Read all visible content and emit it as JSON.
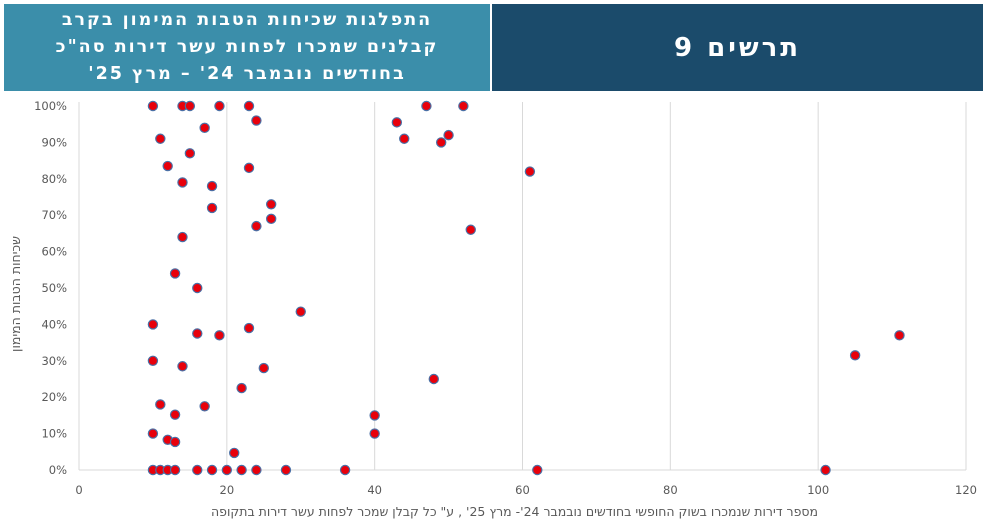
{
  "header": {
    "title_lines": [
      "התפלגות שכיחות הטבות המימון בקרב",
      "קבלנים שמכרו לפחות עשר דירות סה\"כ",
      "בחודשים נובמבר 24' – מרץ 25'"
    ],
    "label": "תרשים 9"
  },
  "colors": {
    "title_bg": "#3b8eaa",
    "label_bg": "#1b4b6b",
    "marker_fill": "#e8000b",
    "marker_edge": "#4a6fa5",
    "grid": "#d9d9d9"
  },
  "chart_data": {
    "type": "scatter",
    "xlabel": "מספר דירות שנמכרו בשוק החופשי בחודשים נובמבר 24'- מרץ 25' , ע\" כל קבלן שמכר לפחות עשר דירות בתקופה",
    "ylabel": "שכיחות הטבות המימון",
    "xlim": [
      0,
      120
    ],
    "ylim": [
      0,
      1
    ],
    "xticks": [
      "0",
      "20",
      "40",
      "60",
      "80",
      "100",
      "120"
    ],
    "yticks": [
      "0%",
      "10%",
      "20%",
      "30%",
      "40%",
      "50%",
      "60%",
      "70%",
      "80%",
      "90%",
      "100%"
    ],
    "grid": "vertical",
    "points": [
      [
        10,
        1.0
      ],
      [
        14,
        1.0
      ],
      [
        15,
        1.0
      ],
      [
        19,
        1.0
      ],
      [
        23,
        1.0
      ],
      [
        47,
        1.0
      ],
      [
        52,
        1.0
      ],
      [
        24,
        0.96
      ],
      [
        43,
        0.955
      ],
      [
        17,
        0.94
      ],
      [
        50,
        0.92
      ],
      [
        11,
        0.91
      ],
      [
        44,
        0.91
      ],
      [
        49,
        0.9
      ],
      [
        15,
        0.87
      ],
      [
        12,
        0.835
      ],
      [
        23,
        0.83
      ],
      [
        61,
        0.82
      ],
      [
        14,
        0.79
      ],
      [
        18,
        0.78
      ],
      [
        26,
        0.73
      ],
      [
        18,
        0.72
      ],
      [
        26,
        0.69
      ],
      [
        24,
        0.67
      ],
      [
        53,
        0.66
      ],
      [
        14,
        0.64
      ],
      [
        13,
        0.54
      ],
      [
        16,
        0.5
      ],
      [
        30,
        0.435
      ],
      [
        10,
        0.4
      ],
      [
        23,
        0.39
      ],
      [
        16,
        0.375
      ],
      [
        19,
        0.37
      ],
      [
        111,
        0.37
      ],
      [
        105,
        0.315
      ],
      [
        10,
        0.3
      ],
      [
        14,
        0.285
      ],
      [
        25,
        0.28
      ],
      [
        48,
        0.25
      ],
      [
        22,
        0.225
      ],
      [
        11,
        0.18
      ],
      [
        17,
        0.175
      ],
      [
        13,
        0.152
      ],
      [
        40,
        0.15
      ],
      [
        10,
        0.1
      ],
      [
        40,
        0.1
      ],
      [
        12,
        0.083
      ],
      [
        13,
        0.077
      ],
      [
        21,
        0.047
      ],
      [
        10,
        0.0
      ],
      [
        11,
        0.0
      ],
      [
        12,
        0.0
      ],
      [
        13,
        0.0
      ],
      [
        16,
        0.0
      ],
      [
        18,
        0.0
      ],
      [
        20,
        0.0
      ],
      [
        22,
        0.0
      ],
      [
        24,
        0.0
      ],
      [
        28,
        0.0
      ],
      [
        36,
        0.0
      ],
      [
        62,
        0.0
      ],
      [
        101,
        0.0
      ]
    ]
  }
}
